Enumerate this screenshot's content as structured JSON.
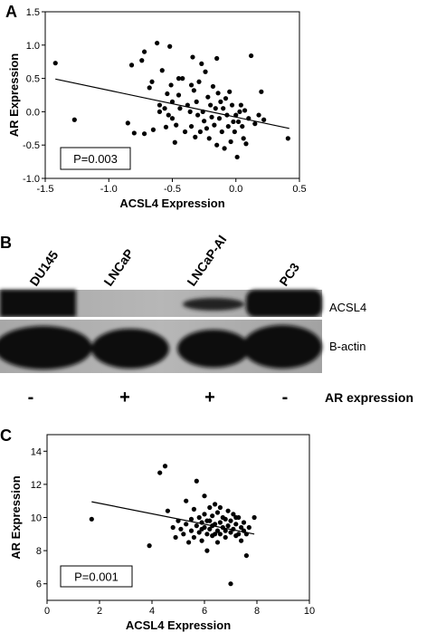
{
  "panels": {
    "a": {
      "letter": "A"
    },
    "b": {
      "letter": "B",
      "lanes": [
        "DU145",
        "LNCaP",
        "LNCaP-AI",
        "PC3"
      ],
      "band_labels": [
        "ACSL4",
        "B-actin"
      ],
      "ar_status": [
        "-",
        "+",
        "+",
        "-"
      ],
      "ar_label": "AR expression"
    },
    "c": {
      "letter": "C"
    }
  },
  "chart_data": [
    {
      "type": "scatter",
      "xlabel": "ACSL4 Expression",
      "ylabel": "AR Expression",
      "xlim": [
        -1.5,
        0.5
      ],
      "ylim": [
        -1.0,
        1.5
      ],
      "xticks": [
        "-1.5",
        "-1.0",
        "-0.5",
        "0.0",
        "0.5"
      ],
      "yticks": [
        "-1.0",
        "-0.5",
        "0.0",
        "0.5",
        "1.0",
        "1.5"
      ],
      "annotation": "P=0.003",
      "trendline": [
        [
          -1.42,
          0.49
        ],
        [
          0.42,
          -0.25
        ]
      ],
      "points": [
        [
          -1.42,
          0.73
        ],
        [
          -1.27,
          -0.12
        ],
        [
          -0.82,
          0.7
        ],
        [
          -0.8,
          -0.32
        ],
        [
          -0.74,
          0.77
        ],
        [
          -0.72,
          0.9
        ],
        [
          -0.72,
          -0.33
        ],
        [
          -0.68,
          0.36
        ],
        [
          -0.66,
          0.45
        ],
        [
          -0.65,
          -0.27
        ],
        [
          -0.62,
          1.03
        ],
        [
          -0.6,
          0.1
        ],
        [
          -0.58,
          0.62
        ],
        [
          -0.56,
          0.05
        ],
        [
          -0.55,
          -0.23
        ],
        [
          -0.54,
          0.27
        ],
        [
          -0.53,
          -0.05
        ],
        [
          -0.52,
          0.98
        ],
        [
          -0.51,
          0.4
        ],
        [
          -0.5,
          -0.1
        ],
        [
          -0.5,
          0.15
        ],
        [
          -0.48,
          -0.46
        ],
        [
          -0.47,
          -0.2
        ],
        [
          -0.45,
          0.25
        ],
        [
          -0.44,
          0.05
        ],
        [
          -0.42,
          0.5
        ],
        [
          -0.4,
          -0.3
        ],
        [
          -0.38,
          0.1
        ],
        [
          -0.36,
          0.0
        ],
        [
          -0.35,
          -0.22
        ],
        [
          -0.34,
          0.82
        ],
        [
          -0.33,
          0.32
        ],
        [
          -0.32,
          -0.38
        ],
        [
          -0.31,
          0.15
        ],
        [
          -0.3,
          -0.05
        ],
        [
          -0.29,
          0.45
        ],
        [
          -0.28,
          -0.3
        ],
        [
          -0.27,
          0.72
        ],
        [
          -0.26,
          0.0
        ],
        [
          -0.25,
          -0.14
        ],
        [
          -0.24,
          0.6
        ],
        [
          -0.23,
          -0.25
        ],
        [
          -0.22,
          0.22
        ],
        [
          -0.21,
          -0.4
        ],
        [
          -0.2,
          0.1
        ],
        [
          -0.19,
          -0.08
        ],
        [
          -0.18,
          0.38
        ],
        [
          -0.17,
          -0.2
        ],
        [
          -0.16,
          0.05
        ],
        [
          -0.15,
          -0.5
        ],
        [
          -0.14,
          0.28
        ],
        [
          -0.13,
          -0.1
        ],
        [
          -0.12,
          0.15
        ],
        [
          -0.11,
          -0.3
        ],
        [
          -0.1,
          0.05
        ],
        [
          -0.09,
          -0.55
        ],
        [
          -0.08,
          0.2
        ],
        [
          -0.07,
          -0.05
        ],
        [
          -0.06,
          -0.22
        ],
        [
          -0.05,
          0.3
        ],
        [
          -0.04,
          -0.45
        ],
        [
          -0.03,
          0.1
        ],
        [
          -0.02,
          -0.15
        ],
        [
          -0.01,
          -0.3
        ],
        [
          0.0,
          -0.05
        ],
        [
          0.01,
          -0.68
        ],
        [
          0.02,
          -0.15
        ],
        [
          0.03,
          0.0
        ],
        [
          0.04,
          0.1
        ],
        [
          0.05,
          -0.22
        ],
        [
          0.06,
          -0.4
        ],
        [
          0.07,
          0.02
        ],
        [
          0.08,
          -0.48
        ],
        [
          0.1,
          -0.1
        ],
        [
          0.12,
          0.84
        ],
        [
          0.15,
          -0.18
        ],
        [
          0.18,
          -0.05
        ],
        [
          0.2,
          0.3
        ],
        [
          0.22,
          -0.12
        ],
        [
          0.41,
          -0.4
        ],
        [
          -0.85,
          -0.17
        ],
        [
          -0.15,
          0.8
        ],
        [
          -0.45,
          0.5
        ],
        [
          -0.6,
          0.0
        ],
        [
          -0.35,
          0.4
        ]
      ]
    },
    {
      "type": "scatter",
      "xlabel": "ACSL4 Expression",
      "ylabel": "AR Expression",
      "xlim": [
        0,
        10
      ],
      "ylim": [
        5,
        15
      ],
      "xticks": [
        "0",
        "2",
        "4",
        "6",
        "8",
        "10"
      ],
      "yticks": [
        "6",
        "8",
        "10",
        "12",
        "14"
      ],
      "annotation": "P=0.001",
      "trendline": [
        [
          1.7,
          10.95
        ],
        [
          7.9,
          9.0
        ]
      ],
      "points": [
        [
          1.7,
          9.9
        ],
        [
          3.9,
          8.3
        ],
        [
          4.3,
          12.7
        ],
        [
          4.5,
          13.1
        ],
        [
          4.6,
          10.4
        ],
        [
          4.8,
          9.4
        ],
        [
          4.9,
          8.8
        ],
        [
          5.0,
          9.8
        ],
        [
          5.1,
          9.3
        ],
        [
          5.2,
          9.0
        ],
        [
          5.3,
          11.0
        ],
        [
          5.3,
          9.6
        ],
        [
          5.4,
          8.5
        ],
        [
          5.5,
          9.9
        ],
        [
          5.5,
          9.2
        ],
        [
          5.6,
          10.5
        ],
        [
          5.6,
          8.8
        ],
        [
          5.7,
          12.2
        ],
        [
          5.7,
          9.5
        ],
        [
          5.8,
          10.0
        ],
        [
          5.8,
          9.1
        ],
        [
          5.9,
          9.7
        ],
        [
          5.9,
          8.6
        ],
        [
          6.0,
          11.3
        ],
        [
          6.0,
          10.2
        ],
        [
          6.0,
          9.4
        ],
        [
          6.1,
          9.0
        ],
        [
          6.1,
          8.0
        ],
        [
          6.2,
          10.6
        ],
        [
          6.2,
          9.8
        ],
        [
          6.2,
          9.3
        ],
        [
          6.3,
          10.1
        ],
        [
          6.3,
          8.9
        ],
        [
          6.4,
          9.6
        ],
        [
          6.4,
          10.8
        ],
        [
          6.5,
          9.2
        ],
        [
          6.5,
          8.5
        ],
        [
          6.5,
          10.3
        ],
        [
          6.6,
          9.7
        ],
        [
          6.6,
          9.0
        ],
        [
          6.7,
          10.0
        ],
        [
          6.7,
          9.4
        ],
        [
          6.8,
          8.8
        ],
        [
          6.8,
          9.9
        ],
        [
          6.9,
          9.5
        ],
        [
          6.9,
          10.4
        ],
        [
          7.0,
          9.1
        ],
        [
          7.0,
          9.8
        ],
        [
          7.0,
          6.0
        ],
        [
          7.1,
          9.3
        ],
        [
          7.1,
          10.2
        ],
        [
          7.2,
          8.9
        ],
        [
          7.2,
          9.6
        ],
        [
          7.3,
          9.0
        ],
        [
          7.3,
          10.0
        ],
        [
          7.4,
          9.4
        ],
        [
          7.4,
          8.6
        ],
        [
          7.5,
          9.7
        ],
        [
          7.5,
          9.2
        ],
        [
          7.6,
          9.0
        ],
        [
          7.6,
          7.7
        ],
        [
          7.7,
          9.4
        ],
        [
          7.9,
          10.0
        ],
        [
          6.3,
          9.5
        ],
        [
          6.6,
          10.6
        ],
        [
          6.1,
          9.8
        ],
        [
          5.9,
          9.3
        ],
        [
          6.8,
          9.2
        ],
        [
          7.2,
          10.0
        ],
        [
          6.4,
          9.0
        ]
      ]
    }
  ]
}
